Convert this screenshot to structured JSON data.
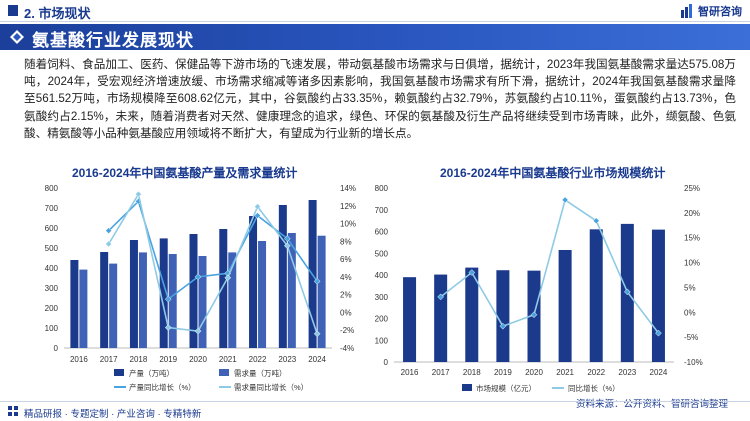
{
  "header": {
    "section_title": "2. 市场现状",
    "brand_name": "智研咨询"
  },
  "banner": {
    "title": "氨基酸行业发展现状"
  },
  "paragraph": "随着饲料、食品加工、医药、保健品等下游市场的飞速发展，带动氨基酸市场需求与日俱增，据统计，2023年我国氨基酸需求量达575.08万吨，2024年，受宏观经济增速放缓、市场需求缩减等诸多因素影响，我国氨基酸市场需求有所下滑，据统计，2024年我国氨基酸需求量降至561.52万吨，市场规模降至608.62亿元，其中，谷氨酸约占33.35%，赖氨酸约占32.79%，苏氨酸约占10.11%，蛋氨酸约占13.73%，色氨酸约占2.15%，未来，随着消费者对天然、健康理念的追求，绿色、环保的氨基酸及衍生产品将继续受到市场青睐，此外，缬氨酸、色氨酸、精氨酸等小品种氨基酸应用领域将不断扩大，有望成为行业新的增长点。",
  "footer": {
    "tagline": "精品研报 · 专题定制 · 产业咨询 · 专精特新",
    "source": "资料来源：公开资料、智研咨询整理"
  },
  "colors": {
    "bar_dark": "#1b3a8c",
    "bar_mid": "#3f62b6",
    "line_light": "#8ecae6",
    "line_dark": "#4aa3df",
    "accent": "#1a3a8f"
  },
  "chart_data": [
    {
      "type": "bar",
      "title": "2016-2024年中国氨基酸产量及需求量统计",
      "categories": [
        "2016",
        "2017",
        "2018",
        "2019",
        "2020",
        "2021",
        "2022",
        "2023",
        "2024"
      ],
      "ylim": [
        0,
        800
      ],
      "y_ticks": [
        "0",
        "100",
        "200",
        "300",
        "400",
        "500",
        "600",
        "700",
        "800"
      ],
      "y2lim": [
        -4,
        14
      ],
      "y2_ticks": [
        "-4%",
        "-2%",
        "0%",
        "2%",
        "4%",
        "6%",
        "8%",
        "10%",
        "12%",
        "14%"
      ],
      "legend_position": "bottom",
      "series": [
        {
          "name": "产量（万吨）",
          "kind": "bar",
          "values": [
            440,
            480,
            540,
            548,
            570,
            595,
            660,
            715,
            740
          ]
        },
        {
          "name": "需求量（万吨）",
          "kind": "bar",
          "values": [
            392,
            422,
            478,
            470,
            460,
            478,
            535,
            575.08,
            561.52
          ]
        },
        {
          "name": "产量同比增长（%）",
          "kind": "line",
          "axis": "right",
          "values": [
            null,
            9.2,
            12.5,
            1.5,
            4.0,
            4.4,
            10.9,
            8.3,
            3.5
          ]
        },
        {
          "name": "需求量同比增长（%）",
          "kind": "line",
          "axis": "right",
          "values": [
            null,
            7.7,
            13.3,
            -1.7,
            -2.1,
            3.9,
            11.9,
            7.5,
            -2.4
          ]
        }
      ]
    },
    {
      "type": "bar",
      "title": "2016-2024年中国氨基酸行业市场规模统计",
      "categories": [
        "2016",
        "2017",
        "2018",
        "2019",
        "2020",
        "2021",
        "2022",
        "2023",
        "2024"
      ],
      "ylim": [
        0,
        800
      ],
      "y_ticks": [
        "0",
        "100",
        "200",
        "300",
        "400",
        "500",
        "600",
        "700",
        "800"
      ],
      "y2lim": [
        -10,
        25
      ],
      "y2_ticks": [
        "-10%",
        "-5%",
        "0%",
        "5%",
        "10%",
        "15%",
        "20%",
        "25%"
      ],
      "legend_position": "bottom",
      "series": [
        {
          "name": "市场规模（亿元）",
          "kind": "bar",
          "values": [
            390,
            402,
            434,
            422,
            420,
            515,
            610,
            635,
            608.62
          ]
        },
        {
          "name": "同比增长（%）",
          "kind": "line",
          "axis": "right",
          "values": [
            null,
            3.1,
            8.0,
            -2.8,
            -0.5,
            22.6,
            18.4,
            4.1,
            -4.2
          ]
        }
      ]
    }
  ]
}
